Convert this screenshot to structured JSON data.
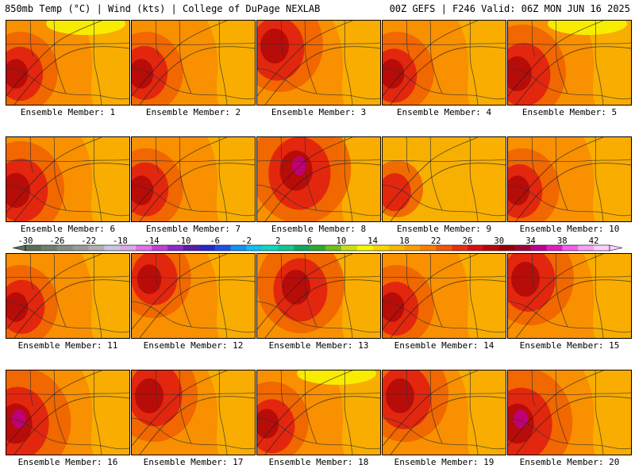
{
  "header": {
    "left": "850mb Temp (°C) | Wind (kts) | College of DuPage NEXLAB",
    "right": "00Z GEFS | F246 Valid: 06Z MON JUN 16 2025"
  },
  "panels": [
    {
      "label": "Ensemble Member: 1",
      "member": 1
    },
    {
      "label": "Ensemble Member: 2",
      "member": 2
    },
    {
      "label": "Ensemble Member: 3",
      "member": 3
    },
    {
      "label": "Ensemble Member: 4",
      "member": 4
    },
    {
      "label": "Ensemble Member: 5",
      "member": 5
    },
    {
      "label": "Ensemble Member: 6",
      "member": 6
    },
    {
      "label": "Ensemble Member: 7",
      "member": 7
    },
    {
      "label": "Ensemble Member: 8",
      "member": 8
    },
    {
      "label": "Ensemble Member: 9",
      "member": 9
    },
    {
      "label": "Ensemble Member: 10",
      "member": 10
    },
    {
      "label": "Ensemble Member: 11",
      "member": 11
    },
    {
      "label": "Ensemble Member: 12",
      "member": 12
    },
    {
      "label": "Ensemble Member: 13",
      "member": 13
    },
    {
      "label": "Ensemble Member: 14",
      "member": 14
    },
    {
      "label": "Ensemble Member: 15",
      "member": 15
    },
    {
      "label": "Ensemble Member: 16",
      "member": 16
    },
    {
      "label": "Ensemble Member: 17",
      "member": 17
    },
    {
      "label": "Ensemble Member: 18",
      "member": 18
    },
    {
      "label": "Ensemble Member: 19",
      "member": 19
    },
    {
      "label": "Ensemble Member: 20",
      "member": 20
    }
  ],
  "colorbar": {
    "tick_labels": [
      "-30",
      "-26",
      "-22",
      "-18",
      "-14",
      "-10",
      "-6",
      "-2",
      "2",
      "6",
      "10",
      "14",
      "18",
      "22",
      "26",
      "30",
      "34",
      "38",
      "42"
    ],
    "colors": [
      "#5a6e5a",
      "#6f806f",
      "#848f84",
      "#9a9a9a",
      "#b0b0b0",
      "#c6c6e0",
      "#d8a8e8",
      "#e070e8",
      "#c040d8",
      "#8a2cc8",
      "#5a1ea8",
      "#2828c8",
      "#2050e8",
      "#1890f0",
      "#10c0f0",
      "#10d8c0",
      "#10c890",
      "#10a860",
      "#30a830",
      "#70c020",
      "#c8e010",
      "#f8f800",
      "#f8d800",
      "#f8b800",
      "#f8a000",
      "#f88000",
      "#f05808",
      "#e83010",
      "#d81010",
      "#b80808",
      "#980000",
      "#a00040",
      "#c00090",
      "#e020c0",
      "#f060e8",
      "#f8a0f8",
      "#fcd0fc"
    ]
  },
  "map_colors": {
    "temp_16": "#f8b000",
    "temp_20": "#f89000",
    "temp_24": "#f06000",
    "temp_28": "#e02010",
    "temp_32": "#b00808",
    "temp_36": "#c00080",
    "temp_12": "#f8f000",
    "border_line": "#333333"
  },
  "panel_warmth": [
    {
      "member": 1,
      "level": "moderate",
      "hot_spot": "west"
    },
    {
      "member": 2,
      "level": "moderate",
      "hot_spot": "west"
    },
    {
      "member": 3,
      "level": "hot",
      "hot_spot": "northwest"
    },
    {
      "member": 4,
      "level": "moderate",
      "hot_spot": "west"
    },
    {
      "member": 5,
      "level": "hot",
      "hot_spot": "west"
    },
    {
      "member": 6,
      "level": "hot",
      "hot_spot": "west"
    },
    {
      "member": 7,
      "level": "moderate",
      "hot_spot": "west"
    },
    {
      "member": 8,
      "level": "extreme",
      "hot_spot": "north-central"
    },
    {
      "member": 9,
      "level": "mild",
      "hot_spot": "west"
    },
    {
      "member": 10,
      "level": "moderate",
      "hot_spot": "west"
    },
    {
      "member": 11,
      "level": "moderate",
      "hot_spot": "west"
    },
    {
      "member": 12,
      "level": "moderate",
      "hot_spot": "northwest"
    },
    {
      "member": 13,
      "level": "hot",
      "hot_spot": "north-central"
    },
    {
      "member": 14,
      "level": "moderate",
      "hot_spot": "west"
    },
    {
      "member": 15,
      "level": "hot",
      "hot_spot": "northwest"
    },
    {
      "member": 16,
      "level": "extreme",
      "hot_spot": "west"
    },
    {
      "member": 17,
      "level": "hot",
      "hot_spot": "northwest"
    },
    {
      "member": 18,
      "level": "moderate",
      "hot_spot": "west"
    },
    {
      "member": 19,
      "level": "hot",
      "hot_spot": "northwest"
    },
    {
      "member": 20,
      "level": "extreme",
      "hot_spot": "west"
    }
  ]
}
